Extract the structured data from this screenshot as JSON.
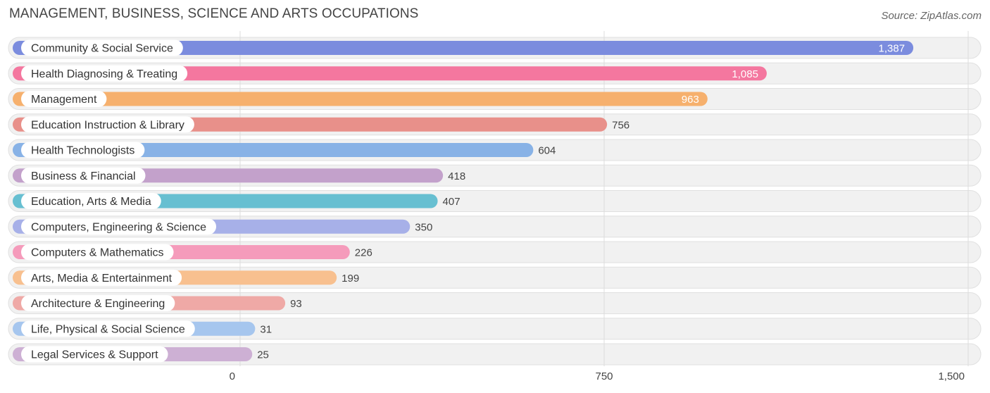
{
  "header": {
    "title": "MANAGEMENT, BUSINESS, SCIENCE AND ARTS OCCUPATIONS",
    "source": "Source: ZipAtlas.com"
  },
  "chart_data": {
    "type": "bar",
    "orientation": "horizontal",
    "title": "MANAGEMENT, BUSINESS, SCIENCE AND ARTS OCCUPATIONS",
    "xlim": [
      0,
      1500
    ],
    "x_ticks": [
      0,
      750,
      1500
    ],
    "x_tick_labels": [
      "0",
      "750",
      "1,500"
    ],
    "grid": true,
    "categories": [
      "Community & Social Service",
      "Health Diagnosing & Treating",
      "Management",
      "Education Instruction & Library",
      "Health Technologists",
      "Business & Financial",
      "Education, Arts & Media",
      "Computers, Engineering & Science",
      "Computers & Mathematics",
      "Arts, Media & Entertainment",
      "Architecture & Engineering",
      "Life, Physical & Social Science",
      "Legal Services & Support"
    ],
    "values": [
      1387,
      1085,
      963,
      756,
      604,
      418,
      407,
      350,
      226,
      199,
      93,
      31,
      25
    ],
    "value_labels": [
      "1,387",
      "1,085",
      "963",
      "756",
      "604",
      "418",
      "407",
      "350",
      "226",
      "199",
      "93",
      "31",
      "25"
    ],
    "colors": [
      "#7b8cde",
      "#f4779f",
      "#f6b06d",
      "#e8908a",
      "#88b2e6",
      "#c3a1cb",
      "#67bfd1",
      "#a7b0e8",
      "#f59bbb",
      "#f8c08f",
      "#efa9a6",
      "#a6c6ee",
      "#cdb0d4"
    ]
  }
}
